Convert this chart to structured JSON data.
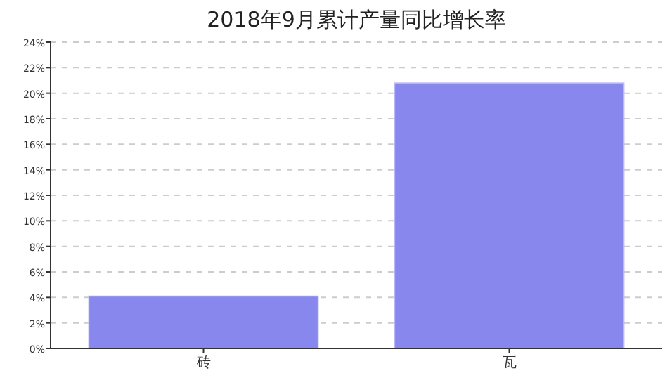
{
  "chart_data": {
    "type": "bar",
    "title": "2018年9月累计产量同比增长率",
    "categories": [
      "砖",
      "瓦"
    ],
    "values": [
      4.1,
      20.8
    ],
    "color": "#8787ee",
    "ylim": [
      0,
      24
    ],
    "yticks": [
      {
        "value": 0,
        "label": "0%"
      },
      {
        "value": 2,
        "label": "2%"
      },
      {
        "value": 4,
        "label": "4%"
      },
      {
        "value": 6,
        "label": "6%"
      },
      {
        "value": 8,
        "label": "8%"
      },
      {
        "value": 10,
        "label": "10%"
      },
      {
        "value": 12,
        "label": "12%"
      },
      {
        "value": 14,
        "label": "14%"
      },
      {
        "value": 16,
        "label": "16%"
      },
      {
        "value": 18,
        "label": "18%"
      },
      {
        "value": 20,
        "label": "20%"
      },
      {
        "value": 22,
        "label": "22%"
      },
      {
        "value": 24,
        "label": "24%"
      }
    ],
    "grid": "y"
  }
}
